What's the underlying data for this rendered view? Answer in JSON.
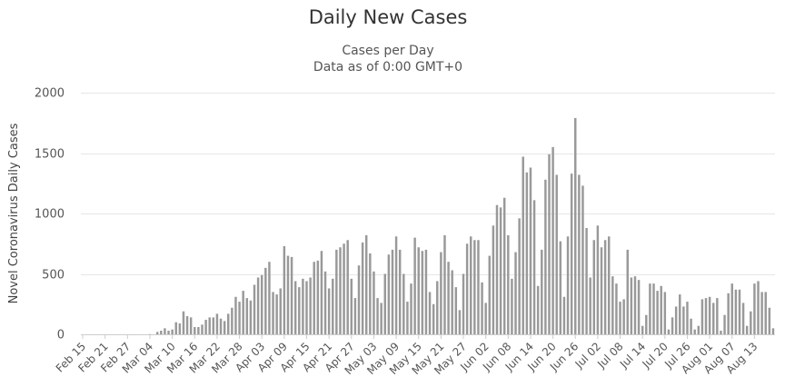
{
  "chart_data": {
    "type": "bar",
    "title": "Daily New Cases",
    "subtitle_lines": [
      "Cases per Day",
      "Data as of 0:00 GMT+0"
    ],
    "ylabel": "Novel Coronavirus Daily Cases",
    "xlabel": "",
    "ylim": [
      0,
      2000
    ],
    "yticks": [
      0,
      500,
      1000,
      1500,
      2000
    ],
    "grid": true,
    "legend": "none",
    "bar_color": "#999999",
    "first_date": "Feb 15",
    "x_tick_labels": [
      "Feb 15",
      "Feb 21",
      "Feb 27",
      "Mar 04",
      "Mar 10",
      "Mar 16",
      "Mar 22",
      "Mar 28",
      "Apr 03",
      "Apr 09",
      "Apr 15",
      "Apr 21",
      "Apr 27",
      "May 03",
      "May 09",
      "May 15",
      "May 21",
      "May 27",
      "Jun 02",
      "Jun 08",
      "Jun 14",
      "Jun 20",
      "Jun 26",
      "Jul 02",
      "Jul 08",
      "Jul 14",
      "Jul 20",
      "Jul 26",
      "Aug 01",
      "Aug 07",
      "Aug 13"
    ],
    "values": [
      0,
      0,
      0,
      0,
      0,
      0,
      0,
      0,
      0,
      0,
      0,
      0,
      0,
      0,
      0,
      0,
      0,
      0,
      2,
      0,
      20,
      30,
      50,
      30,
      40,
      100,
      90,
      190,
      150,
      140,
      60,
      60,
      80,
      120,
      140,
      140,
      170,
      130,
      110,
      170,
      220,
      310,
      270,
      360,
      300,
      280,
      410,
      470,
      490,
      550,
      600,
      350,
      330,
      380,
      730,
      650,
      640,
      440,
      390,
      460,
      440,
      470,
      600,
      610,
      690,
      520,
      380,
      460,
      700,
      720,
      750,
      780,
      460,
      300,
      570,
      760,
      820,
      670,
      520,
      300,
      260,
      500,
      660,
      700,
      810,
      700,
      500,
      270,
      420,
      800,
      720,
      690,
      700,
      350,
      250,
      440,
      680,
      820,
      600,
      530,
      390,
      200,
      500,
      750,
      810,
      780,
      780,
      430,
      260,
      650,
      900,
      1070,
      1050,
      1130,
      820,
      460,
      680,
      960,
      1470,
      1340,
      1380,
      1110,
      400,
      700,
      1280,
      1490,
      1550,
      1320,
      770,
      310,
      810,
      1330,
      1790,
      1320,
      1230,
      880,
      470,
      780,
      900,
      720,
      780,
      810,
      480,
      420,
      270,
      290,
      700,
      470,
      480,
      450,
      70,
      160,
      420,
      420,
      360,
      400,
      350,
      40,
      140,
      230,
      330,
      230,
      270,
      130,
      40,
      70,
      290,
      300,
      310,
      260,
      300,
      30,
      160,
      340,
      420,
      370,
      370,
      260,
      70,
      190,
      420,
      440,
      350,
      350,
      220,
      50
    ]
  }
}
